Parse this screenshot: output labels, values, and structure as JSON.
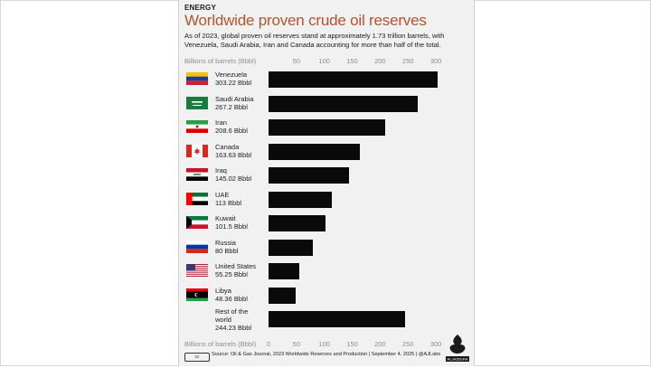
{
  "category": "ENERGY",
  "headline": "Worldwide proven crude oil reserves",
  "dek": "As of 2023, global proven oil reserves stand at approximately 1.73 trillion barrels, with Venezuela, Saudi Arabia, Iran and Canada accounting for more than half of the total.",
  "footer_text": "Source: Oil & Gas Journal, 2023 Worldwide Reserves and Production  |  September 4, 2025  |  @AJLabs",
  "logo_text": "ALJAZEERA",
  "cc_text": "cc",
  "colors": {
    "bar": "#0a0a0a",
    "headline": "#b5542a",
    "card": "#f1f1f1"
  },
  "chart_data": {
    "type": "bar",
    "orientation": "horizontal",
    "title": "Worldwide proven crude oil reserves",
    "xlabel": "Billions of barrels (Bbbl)",
    "xlim": [
      0,
      300
    ],
    "ticks": [
      0,
      50,
      100,
      150,
      200,
      250,
      300
    ],
    "grid": false,
    "categories": [
      "Venezuela",
      "Saudi Arabia",
      "Iran",
      "Canada",
      "Iraq",
      "UAE",
      "Kuwait",
      "Russia",
      "United States",
      "Libya",
      "Rest of the world"
    ],
    "value_labels": [
      "303.22 Bbbl",
      "267.2 Bbbl",
      "208.6 Bbbl",
      "163.63 Bbbl",
      "145.02 Bbbl",
      "113 Bbbl",
      "101.5 Bbbl",
      "80 Bbbl",
      "55.25 Bbbl",
      "48.36 Bbbl",
      "244.23 Bbbl"
    ],
    "values": [
      303.22,
      267.2,
      208.6,
      163.63,
      145.02,
      113,
      101.5,
      80,
      55.25,
      48.36,
      244.23
    ],
    "flags": [
      "venezuela-flag-icon",
      "saudi-arabia-flag-icon",
      "iran-flag-icon",
      "canada-flag-icon",
      "iraq-flag-icon",
      "uae-flag-icon",
      "kuwait-flag-icon",
      "russia-flag-icon",
      "united-states-flag-icon",
      "libya-flag-icon",
      ""
    ]
  }
}
